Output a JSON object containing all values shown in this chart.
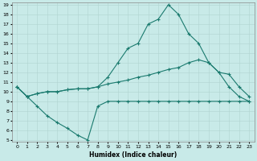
{
  "xlabel": "Humidex (Indice chaleur)",
  "x": [
    0,
    1,
    2,
    3,
    4,
    5,
    6,
    7,
    8,
    9,
    10,
    11,
    12,
    13,
    14,
    15,
    16,
    17,
    18,
    19,
    20,
    21,
    22,
    23
  ],
  "line_peak": [
    10.5,
    9.5,
    9.8,
    10.0,
    10.0,
    10.2,
    10.3,
    10.3,
    10.5,
    11.5,
    13.0,
    14.5,
    15.0,
    17.0,
    17.5,
    19.0,
    18.0,
    16.0,
    15.0,
    13.0,
    12.0,
    10.5,
    9.5,
    9.0
  ],
  "line_mid": [
    10.5,
    9.5,
    9.8,
    10.0,
    10.0,
    10.2,
    10.3,
    10.3,
    10.5,
    10.8,
    11.0,
    11.2,
    11.5,
    11.7,
    12.0,
    12.3,
    12.5,
    13.0,
    13.3,
    13.0,
    12.0,
    11.8,
    10.5,
    9.5
  ],
  "line_flat": [
    10.5,
    9.5,
    8.5,
    7.5,
    6.8,
    6.2,
    5.5,
    5.0,
    8.5,
    9.0,
    9.0,
    9.0,
    9.0,
    9.0,
    9.0,
    9.0,
    9.0,
    9.0,
    9.0,
    9.0,
    9.0,
    9.0,
    9.0,
    9.0
  ],
  "ylim_min": 5,
  "ylim_max": 19,
  "xlim_min": 0,
  "xlim_max": 23,
  "yticks": [
    5,
    6,
    7,
    8,
    9,
    10,
    11,
    12,
    13,
    14,
    15,
    16,
    17,
    18,
    19
  ],
  "xticks": [
    0,
    1,
    2,
    3,
    4,
    5,
    6,
    7,
    8,
    9,
    10,
    11,
    12,
    13,
    14,
    15,
    16,
    17,
    18,
    19,
    20,
    21,
    22,
    23
  ],
  "line_color": "#1a7a6e",
  "bg_color": "#c8eae8",
  "grid_color": "#b0d4d0",
  "spine_color": "#888888"
}
